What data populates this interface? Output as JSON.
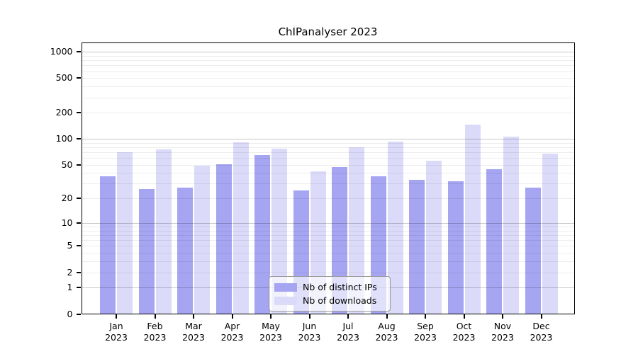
{
  "title": "ChIPanalyser 2023",
  "chart_data": {
    "type": "bar",
    "title": "ChIPanalyser 2023",
    "categories": [
      "Jan",
      "Feb",
      "Mar",
      "Apr",
      "May",
      "Jun",
      "Jul",
      "Aug",
      "Sep",
      "Oct",
      "Nov",
      "Dec"
    ],
    "x_second_line": "2023",
    "series": [
      {
        "name": "Nb of distinct IPs",
        "color": "#a5a5f2",
        "values": [
          37,
          26,
          27,
          51,
          65,
          25,
          47,
          37,
          33,
          32,
          44,
          27
        ]
      },
      {
        "name": "Nb of downloads",
        "color": "#dbdbf9",
        "values": [
          70,
          75,
          49,
          91,
          77,
          42,
          80,
          93,
          56,
          145,
          107,
          68
        ]
      }
    ],
    "y_axis": {
      "scale": "symlog",
      "tick_values": [
        0,
        1,
        2,
        5,
        10,
        20,
        50,
        100,
        200,
        500,
        1000
      ],
      "tick_labels": [
        "0",
        "1",
        "2",
        "5",
        "10",
        "20",
        "50",
        "100",
        "200",
        "500",
        "1000"
      ],
      "major_gridlines": [
        1,
        10,
        100,
        1000
      ],
      "minor_gridlines": [
        2,
        3,
        4,
        5,
        6,
        7,
        8,
        9,
        20,
        30,
        40,
        50,
        60,
        70,
        80,
        90,
        200,
        300,
        400,
        500,
        600,
        700,
        800,
        900
      ],
      "range": [
        0,
        1000
      ]
    },
    "legend": {
      "position": "bottom-center",
      "entries": [
        "Nb of distinct IPs",
        "Nb of downloads"
      ]
    },
    "grid": true
  }
}
